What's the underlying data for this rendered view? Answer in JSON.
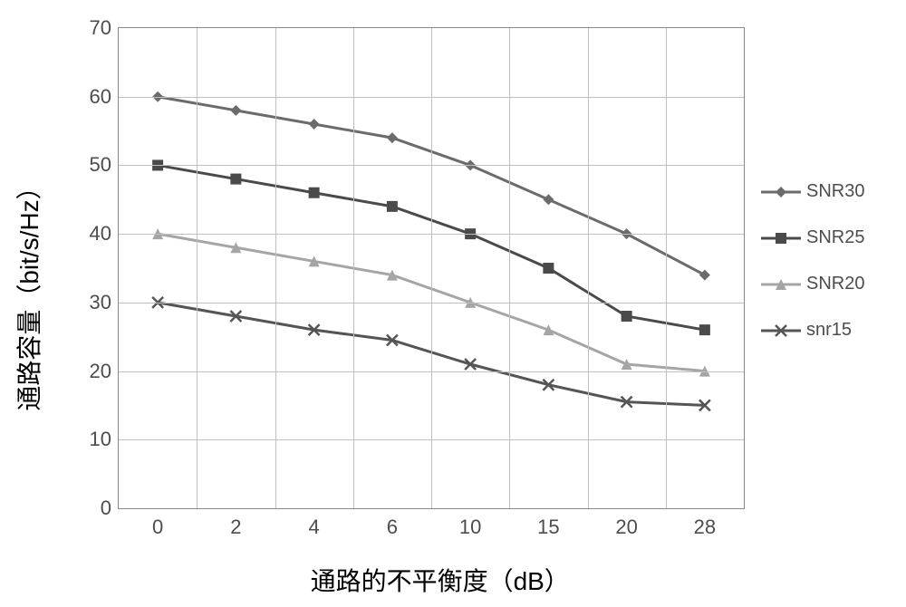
{
  "chart": {
    "type": "line",
    "background_color": "#ffffff",
    "grid_color": "#bfbfbf",
    "text_color": "#4d4d4d",
    "line_width": 3,
    "marker_size": 12,
    "y_axis": {
      "title": "通路容量（bit/s/Hz）",
      "ticks": [
        0,
        10,
        20,
        30,
        40,
        50,
        60,
        70
      ],
      "min": 0,
      "max": 70,
      "title_fontsize": 28,
      "tick_fontsize": 22
    },
    "x_axis": {
      "title": "通路的不平衡度（dB）",
      "categories": [
        "0",
        "2",
        "4",
        "6",
        "10",
        "15",
        "20",
        "28"
      ],
      "title_fontsize": 28,
      "tick_fontsize": 22
    },
    "series": [
      {
        "name": "SNR30",
        "color": "#6b6b6b",
        "marker": "diamond",
        "values": [
          60,
          58,
          56,
          54,
          50,
          45,
          40,
          34
        ]
      },
      {
        "name": "SNR25",
        "color": "#4a4a4a",
        "marker": "square",
        "values": [
          50,
          48,
          46,
          44,
          40,
          35,
          28,
          26
        ]
      },
      {
        "name": "SNR20",
        "color": "#a5a5a5",
        "marker": "triangle",
        "values": [
          40,
          38,
          36,
          34,
          30,
          26,
          21,
          20
        ]
      },
      {
        "name": "snr15",
        "color": "#555555",
        "marker": "x",
        "values": [
          30,
          28,
          26,
          24.5,
          21,
          18,
          15.5,
          15
        ]
      }
    ],
    "legend": {
      "position": "right",
      "fontsize": 20
    }
  }
}
